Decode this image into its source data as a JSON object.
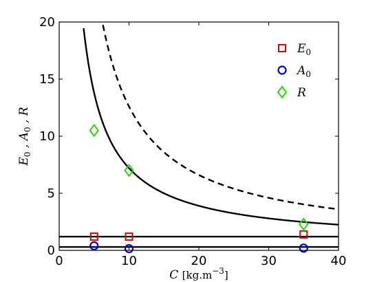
{
  "chart_data": {
    "type": "line",
    "xlabel_var": "C",
    "xlabel_unit_pre": "[kg.m",
    "xlabel_unit_exp": "−3",
    "xlabel_unit_post": "]",
    "ylabel_parts": [
      {
        "var": "E",
        "sub": "0"
      },
      {
        "var": "A",
        "sub": "0"
      },
      {
        "var": "R",
        "sub": ""
      }
    ],
    "xlim": [
      0,
      40
    ],
    "ylim": [
      0,
      20
    ],
    "xticks": [
      0,
      10,
      20,
      30,
      40
    ],
    "yticks": [
      0,
      5,
      10,
      15,
      20
    ],
    "grid": false,
    "legend_position": "top-right",
    "curves": [
      {
        "style": "solid",
        "kind": "reciprocal",
        "k": 66,
        "c": 0.6,
        "x_min": 3.5,
        "x_max": 40
      },
      {
        "style": "dashed",
        "kind": "reciprocal",
        "k": 120,
        "c": 0.6,
        "x_min": 5.5,
        "x_max": 40
      },
      {
        "style": "solid",
        "kind": "constant",
        "value": 1.2,
        "x_min": 0,
        "x_max": 40
      },
      {
        "style": "solid",
        "kind": "constant",
        "value": 0.3,
        "x_min": 0,
        "x_max": 40
      }
    ],
    "series": [
      {
        "name": "E",
        "name_sub": "0",
        "marker": "square",
        "color": "#dd0000",
        "x": [
          5,
          10,
          35
        ],
        "y": [
          1.2,
          1.2,
          1.4
        ]
      },
      {
        "name": "A",
        "name_sub": "0",
        "marker": "circle",
        "color": "#0000dd",
        "x": [
          5,
          10,
          35
        ],
        "y": [
          0.4,
          0.15,
          0.2
        ]
      },
      {
        "name": "R",
        "name_sub": "",
        "marker": "diamond",
        "color": "#22dd00",
        "x": [
          5,
          10,
          35
        ],
        "y": [
          10.5,
          7.0,
          2.3
        ]
      }
    ]
  }
}
